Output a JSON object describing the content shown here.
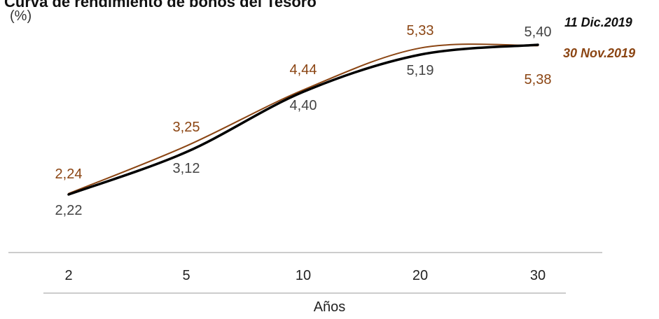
{
  "chart_data": {
    "type": "line",
    "title": "Curva de rendimiento de bonos del Tesoro",
    "unit": "(%)",
    "xlabel": "Años",
    "categories": [
      "2",
      "5",
      "10",
      "20",
      "30"
    ],
    "series": [
      {
        "name": "11 Dic.2019",
        "values": [
          2.22,
          3.12,
          4.4,
          5.19,
          5.4
        ],
        "labels": [
          "2,22",
          "3,12",
          "4,40",
          "5,19",
          "5,40"
        ],
        "color": "#000000"
      },
      {
        "name": "30 Nov.2019",
        "values": [
          2.24,
          3.25,
          4.44,
          5.33,
          5.38
        ],
        "labels": [
          "2,24",
          "3,25",
          "4,44",
          "5,33",
          "5,38"
        ],
        "color": "#8B4513"
      }
    ],
    "grid": false
  }
}
